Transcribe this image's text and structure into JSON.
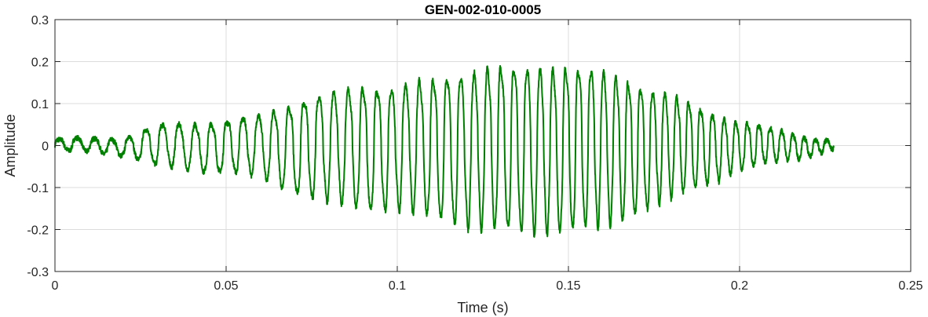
{
  "chart_data": {
    "type": "line",
    "title": "GEN-002-010-0005",
    "xlabel": "Time (s)",
    "ylabel": "Amplitude",
    "xlim": [
      0,
      0.25
    ],
    "ylim": [
      -0.3,
      0.3
    ],
    "grid": true,
    "x_ticks": [
      0,
      0.05,
      0.1,
      0.15,
      0.2,
      0.25
    ],
    "x_tick_labels": [
      "0",
      "0.05",
      "0.1",
      "0.15",
      "0.2",
      "0.25"
    ],
    "y_ticks": [
      -0.3,
      -0.2,
      -0.1,
      0,
      0.1,
      0.2,
      0.3
    ],
    "y_tick_labels": [
      "-0.3",
      "-0.2",
      "-0.1",
      "0",
      "0.1",
      "0.2",
      "0.3"
    ],
    "series": [
      {
        "color": "#008000",
        "description": "oscillatory waveform, spindle-shaped envelope",
        "x_start": 0,
        "x_end": 0.2275,
        "envelope_points": [
          {
            "t": 0.0,
            "a": 0.018
          },
          {
            "t": 0.01,
            "a": 0.02
          },
          {
            "t": 0.02,
            "a": 0.025
          },
          {
            "t": 0.03,
            "a": 0.06
          },
          {
            "t": 0.05,
            "a": 0.075
          },
          {
            "t": 0.06,
            "a": 0.09
          },
          {
            "t": 0.075,
            "a": 0.15
          },
          {
            "t": 0.09,
            "a": 0.18
          },
          {
            "t": 0.1,
            "a": 0.18
          },
          {
            "t": 0.115,
            "a": 0.215
          },
          {
            "t": 0.125,
            "a": 0.235
          },
          {
            "t": 0.14,
            "a": 0.245
          },
          {
            "t": 0.15,
            "a": 0.24
          },
          {
            "t": 0.16,
            "a": 0.23
          },
          {
            "t": 0.175,
            "a": 0.17
          },
          {
            "t": 0.19,
            "a": 0.11
          },
          {
            "t": 0.2,
            "a": 0.07
          },
          {
            "t": 0.21,
            "a": 0.05
          },
          {
            "t": 0.2275,
            "a": 0.012
          }
        ]
      }
    ]
  }
}
